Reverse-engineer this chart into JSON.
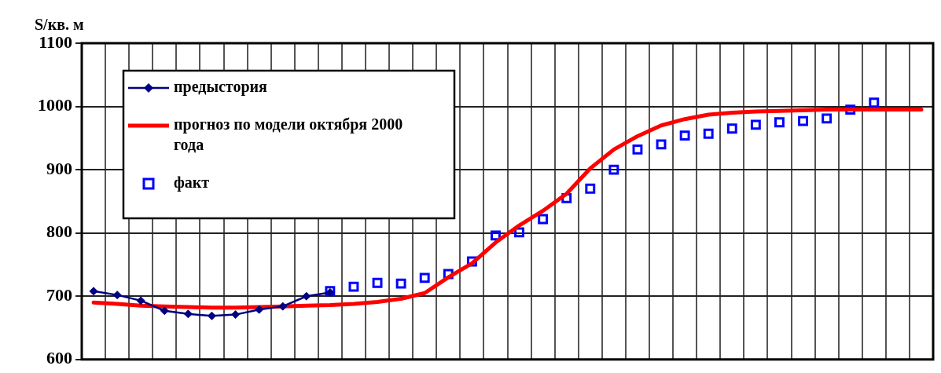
{
  "chart_data": {
    "type": "line",
    "ylabel": "S/кв. м",
    "categories": [
      null,
      null,
      null,
      null,
      null,
      null,
      null,
      null,
      null,
      null,
      null,
      null,
      null,
      null,
      null,
      null,
      null,
      null,
      null,
      null,
      null,
      null,
      null,
      null,
      null,
      null,
      null,
      null,
      null,
      null,
      null,
      null,
      null,
      null,
      null,
      null
    ],
    "series": [
      {
        "name": "предыстория",
        "type": "line",
        "color": "#000080",
        "marker": "diamond",
        "values": [
          708,
          702,
          693,
          677,
          672,
          669,
          671,
          679,
          684,
          700,
          706,
          null,
          null,
          null,
          null,
          null,
          null,
          null,
          null,
          null,
          null,
          null,
          null,
          null,
          null,
          null,
          null,
          null,
          null,
          null,
          null,
          null,
          null,
          null,
          null,
          null
        ]
      },
      {
        "name": "прогноз по модели октября 2000 года",
        "type": "line",
        "color": "#ff0000",
        "marker": "none",
        "values": [
          690,
          688,
          685,
          684,
          683,
          682,
          682,
          683,
          684,
          685,
          686,
          688,
          691,
          696,
          705,
          730,
          752,
          785,
          812,
          835,
          862,
          902,
          932,
          953,
          970,
          980,
          987,
          990,
          992,
          993,
          994,
          995,
          995,
          995,
          995,
          995
        ]
      },
      {
        "name": "факт",
        "type": "scatter",
        "color": "#0000ff",
        "marker": "square",
        "values": [
          null,
          null,
          null,
          null,
          null,
          null,
          null,
          null,
          null,
          null,
          708,
          715,
          721,
          720,
          729,
          735,
          755,
          796,
          801,
          822,
          855,
          870,
          900,
          932,
          940,
          954,
          957,
          965,
          971,
          975,
          977,
          981,
          995,
          1006,
          null,
          null
        ]
      }
    ],
    "ylim": [
      600,
      1100
    ],
    "yticks": [
      600,
      700,
      800,
      900,
      1000,
      1100
    ],
    "grid": true,
    "legend": "top left",
    "tick_labels": "y"
  }
}
